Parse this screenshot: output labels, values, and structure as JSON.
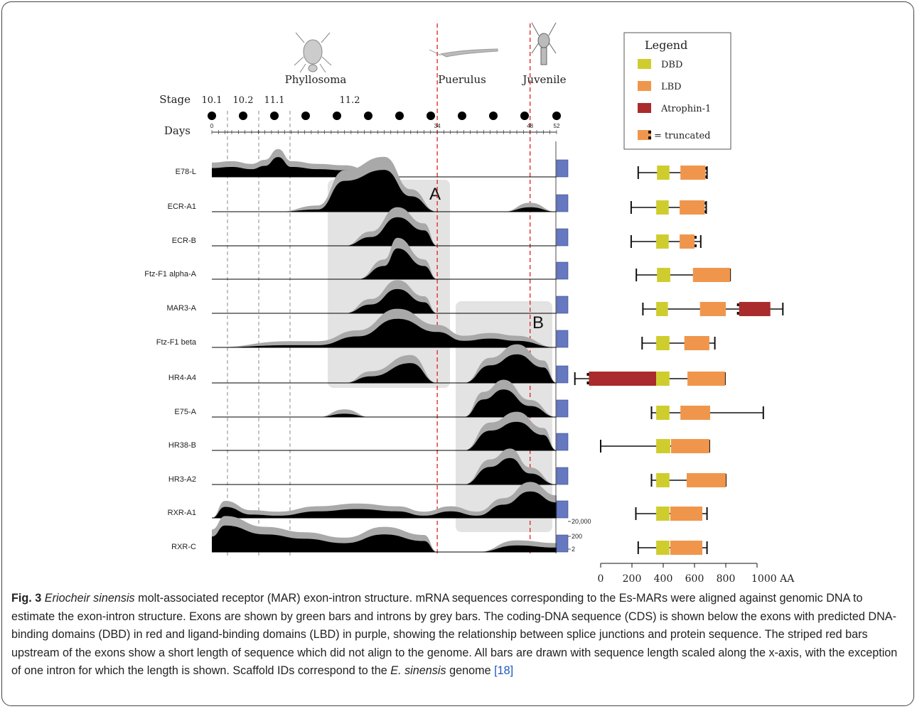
{
  "figure": {
    "stage_header": "Stage",
    "days_header": "Days",
    "stages": [
      "10.1",
      "10.2",
      "11.1",
      "11.2"
    ],
    "phases": [
      "Phyllosoma",
      "Puerulus",
      "Juvenile"
    ],
    "day_ticks": [
      "0",
      "34",
      "48",
      "52"
    ],
    "box_labels": [
      "A",
      "B"
    ],
    "scale_labels": [
      "20,000",
      "200",
      "2"
    ],
    "genes": [
      "E78-L",
      "ECR-A1",
      "ECR-B",
      "Ftz-F1 alpha-A",
      "MAR3-A",
      "Ftz-F1 beta",
      "HR4-A4",
      "E75-A",
      "HR38-B",
      "HR3-A2",
      "RXR-A1",
      "RXR-C"
    ],
    "legend": {
      "title": "Legend",
      "items": [
        {
          "label": "DBD",
          "color": "#cfcd2e"
        },
        {
          "label": "LBD",
          "color": "#f0964c"
        },
        {
          "label": "Atrophin-1",
          "color": "#aa2b2b"
        }
      ],
      "truncated_label": "= truncated"
    },
    "axis": {
      "ticks": [
        "0",
        "200",
        "400",
        "600",
        "800",
        "1000 AA"
      ]
    },
    "colors": {
      "expression_fg": "#000000",
      "expression_bg": "#a9a9a9",
      "bar_blue": "#6678c0",
      "stage_line_red": "#e02020",
      "shade_box": "#e3e3e3"
    },
    "proteins": [
      {
        "gene": "E78-L",
        "start": 240,
        "end": 680,
        "domains": [
          [
            "DBD",
            360,
            440
          ],
          [
            "LBD",
            510,
            670
          ]
        ],
        "trunc_end": true
      },
      {
        "gene": "ECR-A1",
        "start": 195,
        "end": 675,
        "domains": [
          [
            "DBD",
            355,
            435
          ],
          [
            "LBD",
            505,
            665
          ]
        ],
        "trunc_end": true
      },
      {
        "gene": "ECR-B",
        "start": 195,
        "end": 640,
        "domains": [
          [
            "DBD",
            355,
            435
          ],
          [
            "LBD",
            505,
            600
          ]
        ],
        "trunc_end": true
      },
      {
        "gene": "Ftz-F1 alpha-A",
        "start": 228,
        "end": 828,
        "domains": [
          [
            "DBD",
            360,
            445
          ],
          [
            "LBD",
            590,
            828
          ]
        ],
        "trunc_end": false
      },
      {
        "gene": "MAR3-A",
        "start": 270,
        "end": 1165,
        "domains": [
          [
            "DBD",
            355,
            430
          ],
          [
            "LBD",
            635,
            800
          ],
          [
            "Atrophin-1",
            885,
            1085
          ]
        ],
        "trunc_end": false,
        "trunc_mid": 885
      },
      {
        "gene": "Ftz-F1 beta",
        "start": 265,
        "end": 730,
        "domains": [
          [
            "DBD",
            355,
            440
          ],
          [
            "LBD",
            535,
            695
          ]
        ],
        "trunc_end": false
      },
      {
        "gene": "HR4-A4",
        "start": -165,
        "end": 795,
        "domains": [
          [
            "Atrophin-1",
            -75,
            355
          ],
          [
            "DBD",
            355,
            440
          ],
          [
            "LBD",
            555,
            795
          ]
        ],
        "trunc_end": false,
        "trunc_start": true
      },
      {
        "gene": "E75-A",
        "start": 325,
        "end": 1040,
        "domains": [
          [
            "DBD",
            355,
            440
          ],
          [
            "LBD",
            510,
            700
          ]
        ],
        "trunc_end": false
      },
      {
        "gene": "HR38-B",
        "start": 0,
        "end": 695,
        "domains": [
          [
            "DBD",
            355,
            445
          ],
          [
            "LBD",
            450,
            695
          ]
        ],
        "trunc_end": false
      },
      {
        "gene": "HR3-A2",
        "start": 325,
        "end": 800,
        "domains": [
          [
            "DBD",
            355,
            440
          ],
          [
            "LBD",
            550,
            800
          ]
        ],
        "trunc_end": false
      },
      {
        "gene": "RXR-A1",
        "start": 225,
        "end": 680,
        "domains": [
          [
            "DBD",
            355,
            440
          ],
          [
            "LBD",
            445,
            650
          ]
        ],
        "trunc_end": false
      },
      {
        "gene": "RXR-C",
        "start": 240,
        "end": 680,
        "domains": [
          [
            "DBD",
            355,
            440
          ],
          [
            "LBD",
            445,
            650
          ]
        ],
        "trunc_end": false
      }
    ]
  },
  "caption": {
    "label": "Fig. 3",
    "species": "Eriocheir sinensis",
    "part1": " molt-associated receptor (MAR) exon-intron structure. mRNA sequences corresponding to the Es-MARs were aligned against genomic DNA to estimate the exon-intron structure. Exons are shown by green bars and introns by grey bars. The coding-DNA sequence (CDS) is shown below the exons with predicted DNA-binding domains (DBD) in red and ligand-binding domains (LBD) in purple, showing the relationship between splice junctions and protein sequence. The striped red bars upstream of the exons show a short length of sequence which did not align to the genome. All bars are drawn with sequence length scaled along the x-axis, with the exception of one intron for which the length is shown. Scaffold IDs correspond to the ",
    "species2": "E. sinensis",
    "part2": " genome ",
    "ref": "[18]"
  }
}
